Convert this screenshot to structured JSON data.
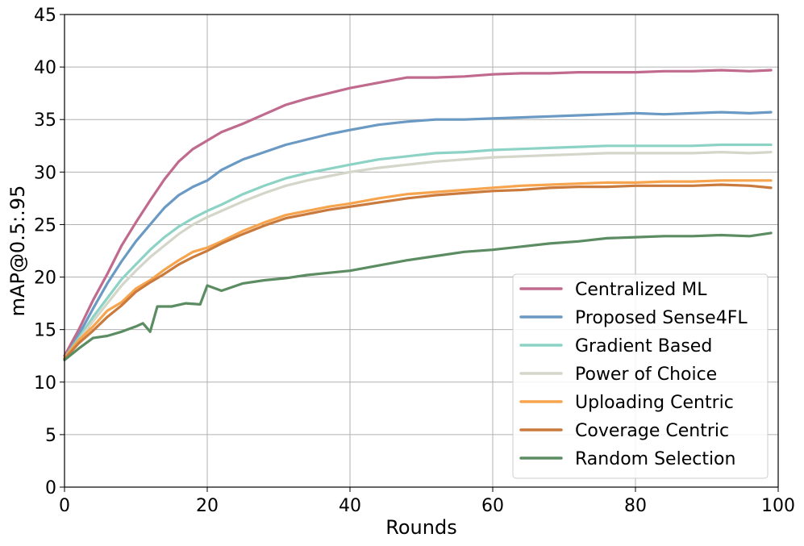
{
  "chart_data": {
    "type": "line",
    "xlabel": "Rounds",
    "ylabel": "mAP@0.5:.95",
    "xlim": [
      0,
      100
    ],
    "ylim": [
      0,
      45
    ],
    "xticks": [
      0,
      20,
      40,
      60,
      80,
      100
    ],
    "yticks": [
      0,
      5,
      10,
      15,
      20,
      25,
      30,
      35,
      40,
      45
    ],
    "grid": true,
    "legend_position": "bottom-right",
    "series": [
      {
        "name": "Centralized ML",
        "color": "#c06a8e",
        "x": [
          0,
          2,
          4,
          6,
          8,
          10,
          12,
          14,
          16,
          18,
          20,
          22,
          25,
          28,
          31,
          34,
          37,
          40,
          44,
          48,
          52,
          56,
          60,
          64,
          68,
          72,
          76,
          80,
          84,
          88,
          92,
          96,
          99
        ],
        "y": [
          12.5,
          15.0,
          17.8,
          20.3,
          23.0,
          25.2,
          27.3,
          29.3,
          31.0,
          32.2,
          33.0,
          33.8,
          34.6,
          35.5,
          36.4,
          37.0,
          37.5,
          38.0,
          38.5,
          39.0,
          39.0,
          39.1,
          39.3,
          39.4,
          39.4,
          39.5,
          39.5,
          39.5,
          39.6,
          39.6,
          39.7,
          39.6,
          39.7
        ]
      },
      {
        "name": "Proposed Sense4FL",
        "color": "#6a99c4",
        "x": [
          0,
          2,
          4,
          6,
          8,
          10,
          12,
          14,
          16,
          18,
          20,
          22,
          25,
          28,
          31,
          34,
          37,
          40,
          44,
          48,
          52,
          56,
          60,
          64,
          68,
          72,
          76,
          80,
          84,
          88,
          92,
          96,
          99
        ],
        "y": [
          12.2,
          14.5,
          17.0,
          19.4,
          21.5,
          23.4,
          25.0,
          26.6,
          27.8,
          28.6,
          29.2,
          30.2,
          31.2,
          31.9,
          32.6,
          33.1,
          33.6,
          34.0,
          34.5,
          34.8,
          35.0,
          35.0,
          35.1,
          35.2,
          35.3,
          35.4,
          35.5,
          35.6,
          35.5,
          35.6,
          35.7,
          35.6,
          35.7
        ]
      },
      {
        "name": "Gradient Based",
        "color": "#8cd3c5",
        "x": [
          0,
          2,
          4,
          6,
          8,
          10,
          12,
          14,
          16,
          18,
          20,
          22,
          25,
          28,
          31,
          34,
          37,
          40,
          44,
          48,
          52,
          56,
          60,
          64,
          68,
          72,
          76,
          80,
          84,
          88,
          92,
          96,
          99
        ],
        "y": [
          12.3,
          14.2,
          16.2,
          18.0,
          19.8,
          21.2,
          22.6,
          23.8,
          24.8,
          25.6,
          26.3,
          26.9,
          27.9,
          28.7,
          29.4,
          29.9,
          30.3,
          30.7,
          31.2,
          31.5,
          31.8,
          31.9,
          32.1,
          32.2,
          32.3,
          32.4,
          32.5,
          32.5,
          32.5,
          32.5,
          32.6,
          32.6,
          32.6
        ]
      },
      {
        "name": "Power of Choice",
        "color": "#d3d6c8",
        "x": [
          0,
          2,
          4,
          6,
          8,
          10,
          12,
          14,
          16,
          18,
          20,
          22,
          25,
          28,
          31,
          34,
          37,
          40,
          44,
          48,
          52,
          56,
          60,
          64,
          68,
          72,
          76,
          80,
          84,
          88,
          92,
          96,
          99
        ],
        "y": [
          12.2,
          14.0,
          15.8,
          17.5,
          19.2,
          20.6,
          21.9,
          23.0,
          24.1,
          25.0,
          25.7,
          26.3,
          27.2,
          28.0,
          28.7,
          29.2,
          29.6,
          30.0,
          30.4,
          30.7,
          31.0,
          31.2,
          31.4,
          31.5,
          31.6,
          31.7,
          31.8,
          31.8,
          31.8,
          31.8,
          31.9,
          31.8,
          31.9
        ]
      },
      {
        "name": "Uploading Centric",
        "color": "#f7a44e",
        "x": [
          0,
          2,
          4,
          6,
          8,
          10,
          12,
          14,
          16,
          18,
          20,
          22,
          25,
          28,
          31,
          34,
          37,
          40,
          44,
          48,
          52,
          56,
          60,
          64,
          68,
          72,
          76,
          80,
          84,
          88,
          92,
          96,
          99
        ],
        "y": [
          12.3,
          14.0,
          15.3,
          16.8,
          17.6,
          18.9,
          19.7,
          20.7,
          21.6,
          22.4,
          22.8,
          23.4,
          24.4,
          25.2,
          25.9,
          26.3,
          26.7,
          27.0,
          27.5,
          27.9,
          28.1,
          28.3,
          28.5,
          28.7,
          28.8,
          28.9,
          29.0,
          29.0,
          29.1,
          29.1,
          29.2,
          29.2,
          29.2
        ]
      },
      {
        "name": "Coverage Centric",
        "color": "#c97a3c",
        "x": [
          0,
          2,
          4,
          6,
          8,
          10,
          12,
          14,
          16,
          18,
          20,
          22,
          25,
          28,
          31,
          34,
          37,
          40,
          44,
          48,
          52,
          56,
          60,
          64,
          68,
          72,
          76,
          80,
          84,
          88,
          92,
          96,
          99
        ],
        "y": [
          12.2,
          13.7,
          14.9,
          16.2,
          17.3,
          18.6,
          19.5,
          20.3,
          21.2,
          21.9,
          22.5,
          23.2,
          24.1,
          24.9,
          25.6,
          26.0,
          26.4,
          26.7,
          27.1,
          27.5,
          27.8,
          28.0,
          28.2,
          28.3,
          28.5,
          28.6,
          28.6,
          28.7,
          28.7,
          28.7,
          28.8,
          28.7,
          28.5
        ]
      },
      {
        "name": "Random Selection",
        "color": "#5c8c62",
        "x": [
          0,
          2,
          4,
          6,
          8,
          10,
          11,
          12,
          13,
          15,
          17,
          19,
          20,
          22,
          25,
          28,
          31,
          34,
          37,
          40,
          44,
          48,
          52,
          56,
          60,
          64,
          68,
          72,
          76,
          80,
          84,
          88,
          92,
          96,
          99
        ],
        "y": [
          12.1,
          13.2,
          14.2,
          14.4,
          14.8,
          15.3,
          15.6,
          14.8,
          17.2,
          17.2,
          17.5,
          17.4,
          19.2,
          18.7,
          19.4,
          19.7,
          19.9,
          20.2,
          20.4,
          20.6,
          21.1,
          21.6,
          22.0,
          22.4,
          22.6,
          22.9,
          23.2,
          23.4,
          23.7,
          23.8,
          23.9,
          23.9,
          24.0,
          23.9,
          24.2
        ]
      }
    ]
  }
}
